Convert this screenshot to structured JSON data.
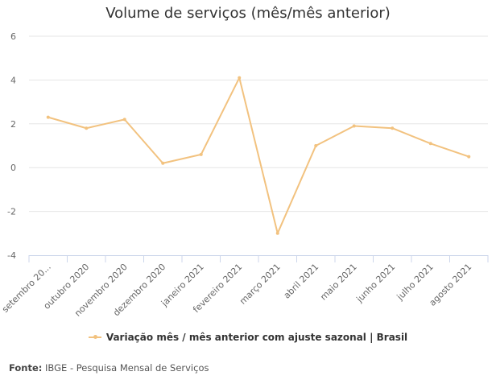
{
  "chart_data": {
    "type": "line",
    "title": "Volume de serviços (mês/mês anterior)",
    "categories": [
      "setembro 20...",
      "outubro 2020",
      "novembro 2020",
      "dezembro 2020",
      "janeiro 2021",
      "fevereiro 2021",
      "março 2021",
      "abril 2021",
      "maio 2021",
      "junho 2021",
      "julho 2021",
      "agosto 2021"
    ],
    "series": [
      {
        "name": "Variação mês / mês anterior com ajuste sazonal | Brasil",
        "values": [
          2.3,
          1.8,
          2.2,
          0.2,
          0.6,
          4.1,
          -3.0,
          1.0,
          1.9,
          1.8,
          1.1,
          0.5
        ]
      }
    ],
    "ylim": [
      -4,
      6
    ],
    "yticks": [
      6,
      4,
      2,
      0,
      -2,
      -4
    ],
    "grid": true,
    "legend_position": "bottom",
    "colors": {
      "series": "#f2c27f",
      "grid": "#e6e6e6",
      "axis": "#ccd6eb"
    }
  },
  "source": {
    "label": "Fonte:",
    "text": " IBGE - Pesquisa Mensal de Serviços"
  }
}
